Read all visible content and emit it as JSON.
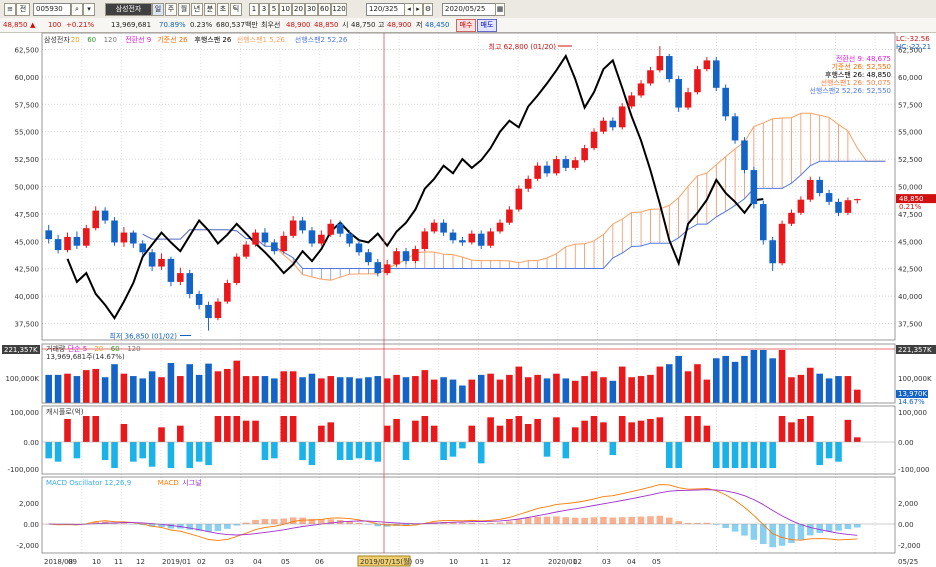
{
  "toolbar": {
    "code_prefix": "전",
    "code": "005930",
    "name": "삼성전자",
    "periods": [
      "일",
      "주",
      "월",
      "년",
      "분",
      "초",
      "틱"
    ],
    "numbers": [
      "1",
      "3",
      "5",
      "10",
      "20",
      "30",
      "60",
      "120"
    ],
    "count": "120/325",
    "date": "2020/05/25"
  },
  "infobar": {
    "price": "48,850",
    "change_arrow": "▲",
    "change": "100",
    "change_pct": "+0.21%",
    "volume": "13,969,681",
    "vol_ratio": "70.89%",
    "turnover_pct": "0.23%",
    "amount": "680,537백만",
    "pref_label": "최우선",
    "pref_price": "48,900",
    "ask": "48,850",
    "open_label": "시",
    "open": "48,750",
    "high_label": "고",
    "high": "48,900",
    "low_label": "저",
    "low": "48,450",
    "buy": "매수",
    "sell": "매도"
  },
  "price_panel": {
    "legend": [
      {
        "text": "삼성전자",
        "color": "#333333"
      },
      {
        "text": "20",
        "color": "#f0a020"
      },
      {
        "text": "60",
        "color": "#2a9a2a"
      },
      {
        "text": "120",
        "color": "#7a7a7a"
      },
      {
        "text": "전환선 9",
        "color": "#e020e0"
      },
      {
        "text": "기준선 26",
        "color": "#ff6a00"
      },
      {
        "text": "후행스팬 26",
        "color": "#000000"
      },
      {
        "text": "선행스팬1 5,26",
        "color": "#ffa060"
      },
      {
        "text": "선행스팬2 52,26",
        "color": "#5078e0"
      }
    ],
    "right_legend": [
      {
        "text": "전환선 9: 48,675",
        "color": "#e020e0"
      },
      {
        "text": "기준선 26: 52,550",
        "color": "#ff6a00"
      },
      {
        "text": "후행스팬 26: 48,850",
        "color": "#000000"
      },
      {
        "text": "선행스팬1 26: 50,075",
        "color": "#ff8040"
      },
      {
        "text": "선행스팬2 52,26: 52,550",
        "color": "#5078e0"
      }
    ],
    "high_note": "최고 62,800 (01/20)",
    "low_note": "최저 36,850 (01/02)",
    "right_top1": "LC:-32.56",
    "right_top2": "HC:-22.21",
    "price_tag": "48,850",
    "price_tag_pct": "0.21%",
    "yticks": [
      "62,500",
      "60,000",
      "57,500",
      "55,000",
      "52,500",
      "50,000",
      "47,500",
      "45,000",
      "42,500",
      "40,000",
      "37,500"
    ]
  },
  "volume_panel": {
    "left_tag": "221,357K",
    "right_tag": "221,357K",
    "legend": [
      {
        "text": "거래량",
        "color": "#333333"
      },
      {
        "text": "단순 5",
        "color": "#e020e0"
      },
      {
        "text": "20",
        "color": "#f0a020"
      },
      {
        "text": "60",
        "color": "#2a9a2a"
      },
      {
        "text": "120",
        "color": "#7a7a7a"
      }
    ],
    "sub_label": "13,969,681주(14.67%)",
    "left_tick": "100,000K",
    "right_tick": "100,000K",
    "right_value": "13,970K",
    "right_pct": "14.67%"
  },
  "flow_panel": {
    "title": "캐시플로(억)",
    "left_ticks": [
      "100,000",
      "0.00",
      "-100,000"
    ],
    "right_ticks": [
      "100,000",
      "0.00",
      "-100,000"
    ]
  },
  "macd_panel": {
    "legend": [
      {
        "text": "MACD Oscillator 12,26,9",
        "color": "#3aaee0"
      },
      {
        "text": "MACD",
        "color": "#ff7a00"
      },
      {
        "text": "시그널",
        "color": "#a030d0"
      }
    ],
    "left_ticks": [
      "2,000",
      "0.00",
      "-2,000"
    ],
    "right_ticks": [
      "2,000",
      "0.00",
      "-2,000"
    ]
  },
  "xaxis": {
    "labels": [
      "2018/08",
      "09",
      "10",
      "11",
      "12",
      "2019/01",
      "02",
      "03",
      "04",
      "05",
      "06",
      "2019/07/15(월)",
      "09",
      "10",
      "11",
      "12",
      "2020/01",
      "02",
      "03",
      "04",
      "05",
      "05/25"
    ]
  },
  "chart_data": {
    "type": "candlestick",
    "colors": {
      "up": "#e8181b",
      "down": "#1463c6"
    },
    "candles": [
      [
        46000,
        45200,
        46500,
        44800
      ],
      [
        45200,
        44200,
        45600,
        43900
      ],
      [
        44200,
        45400,
        45800,
        44000
      ],
      [
        45400,
        44600,
        45900,
        44300
      ],
      [
        44600,
        46200,
        46500,
        44400
      ],
      [
        46200,
        47800,
        48200,
        46000
      ],
      [
        47800,
        46900,
        48100,
        46600
      ],
      [
        46900,
        44900,
        47200,
        44600
      ],
      [
        44900,
        45800,
        46300,
        44500
      ],
      [
        45800,
        44800,
        46000,
        44400
      ],
      [
        44800,
        44000,
        45100,
        43700
      ],
      [
        44000,
        42700,
        44300,
        42300
      ],
      [
        42700,
        43400,
        43900,
        42400
      ],
      [
        43400,
        41300,
        43600,
        40900
      ],
      [
        41300,
        42100,
        42600,
        41000
      ],
      [
        42100,
        40200,
        42400,
        39800
      ],
      [
        40200,
        39200,
        40500,
        38800
      ],
      [
        39200,
        38000,
        39500,
        36850
      ],
      [
        38000,
        39500,
        39800,
        37800
      ],
      [
        39500,
        41200,
        41500,
        39300
      ],
      [
        41200,
        43600,
        43900,
        41000
      ],
      [
        43600,
        44700,
        45000,
        43400
      ],
      [
        44700,
        45800,
        46100,
        44500
      ],
      [
        45800,
        44900,
        46200,
        44600
      ],
      [
        44900,
        44100,
        45200,
        43800
      ],
      [
        44100,
        45500,
        45900,
        43900
      ],
      [
        45500,
        46900,
        47300,
        45300
      ],
      [
        46900,
        46000,
        47200,
        45700
      ],
      [
        46000,
        44800,
        46300,
        44500
      ],
      [
        44800,
        45600,
        46000,
        44600
      ],
      [
        45600,
        46600,
        47000,
        45400
      ],
      [
        46600,
        45700,
        46900,
        45400
      ],
      [
        45700,
        44800,
        46000,
        44500
      ],
      [
        44800,
        44000,
        45100,
        43700
      ],
      [
        44000,
        43100,
        44300,
        42800
      ],
      [
        43100,
        42100,
        43400,
        41800
      ],
      [
        42100,
        42900,
        43300,
        41900
      ],
      [
        42900,
        44100,
        44400,
        42700
      ],
      [
        44100,
        43200,
        44400,
        42900
      ],
      [
        43200,
        44300,
        44600,
        43000
      ],
      [
        44300,
        45900,
        46200,
        44100
      ],
      [
        45900,
        46700,
        47000,
        45700
      ],
      [
        46700,
        45800,
        47000,
        45500
      ],
      [
        45800,
        45100,
        46100,
        44800
      ],
      [
        45100,
        44900,
        45400,
        44600
      ],
      [
        44900,
        45700,
        46000,
        44700
      ],
      [
        45700,
        44600,
        46000,
        44300
      ],
      [
        44600,
        45900,
        46200,
        44400
      ],
      [
        45900,
        46700,
        47000,
        45700
      ],
      [
        46700,
        47900,
        48200,
        46500
      ],
      [
        47900,
        49800,
        50100,
        47700
      ],
      [
        49800,
        50700,
        51000,
        49500
      ],
      [
        50700,
        51900,
        52200,
        50500
      ],
      [
        51900,
        51200,
        52300,
        50900
      ],
      [
        51200,
        52500,
        52800,
        51000
      ],
      [
        52500,
        51700,
        52800,
        51400
      ],
      [
        51700,
        52400,
        52700,
        51500
      ],
      [
        52400,
        53500,
        53800,
        52200
      ],
      [
        53500,
        55000,
        55300,
        53300
      ],
      [
        55000,
        56000,
        56300,
        54800
      ],
      [
        56000,
        55400,
        56300,
        55100
      ],
      [
        55400,
        57300,
        57600,
        55200
      ],
      [
        57300,
        58300,
        58600,
        57100
      ],
      [
        58300,
        59400,
        59700,
        58100
      ],
      [
        59400,
        60600,
        60900,
        59200
      ],
      [
        60600,
        61900,
        62800,
        60400
      ],
      [
        61900,
        59800,
        62100,
        59500
      ],
      [
        59800,
        57200,
        60100,
        56800
      ],
      [
        57200,
        58600,
        59000,
        57000
      ],
      [
        58600,
        60700,
        61000,
        58400
      ],
      [
        60700,
        61500,
        61800,
        60500
      ],
      [
        61500,
        59000,
        61800,
        58700
      ],
      [
        59000,
        56400,
        59300,
        56000
      ],
      [
        56400,
        54200,
        56700,
        53900
      ],
      [
        54200,
        51500,
        54500,
        51200
      ],
      [
        51500,
        48400,
        51800,
        48000
      ],
      [
        48400,
        45100,
        48700,
        44700
      ],
      [
        45100,
        43000,
        45400,
        42300
      ],
      [
        43000,
        46600,
        46900,
        42800
      ],
      [
        46600,
        47600,
        47900,
        46400
      ],
      [
        47600,
        48800,
        49100,
        47400
      ],
      [
        48800,
        50600,
        50900,
        48600
      ],
      [
        50600,
        49400,
        50900,
        49100
      ],
      [
        49400,
        48600,
        49700,
        48300
      ],
      [
        48600,
        47600,
        48900,
        47300
      ],
      [
        47600,
        48750,
        49000,
        47400
      ],
      [
        48750,
        48850,
        48900,
        48450
      ]
    ]
  }
}
